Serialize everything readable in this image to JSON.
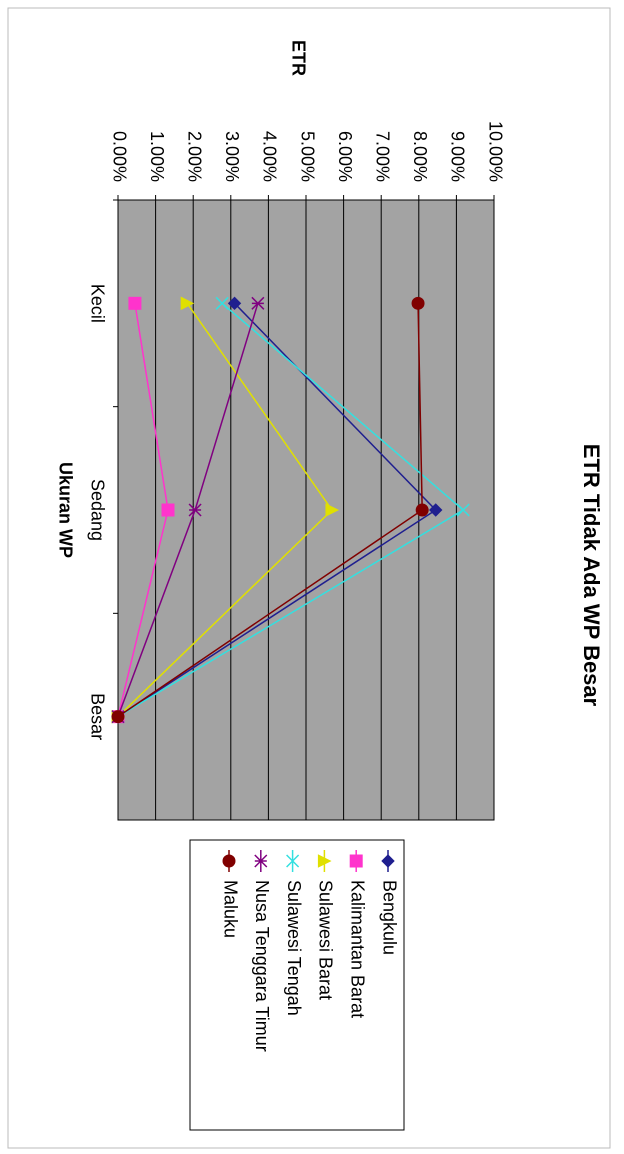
{
  "chart_data": {
    "type": "line",
    "title": "ETR Tidak Ada WP Besar",
    "y_label": "ETR",
    "x_label": "Ukuran WP",
    "categories": [
      "Kecil",
      "Sedang",
      "Besar"
    ],
    "series": [
      {
        "name": "Bengkulu",
        "color": "#1f1f8f",
        "values": [
          3.1,
          8.45,
          0
        ]
      },
      {
        "name": "Kalimantan Barat",
        "color": "#ff33cc",
        "values": [
          0.45,
          1.33,
          0
        ]
      },
      {
        "name": "Sulawesi Barat",
        "color": "#e0e000",
        "values": [
          1.84,
          5.69,
          0
        ]
      },
      {
        "name": "Sulawesi Tengah",
        "color": "#33e0e0",
        "values": [
          2.77,
          9.18,
          0
        ]
      },
      {
        "name": "Nusa Tenggara Timur",
        "color": "#800080",
        "values": [
          3.72,
          2.05,
          0
        ]
      },
      {
        "name": "Maluku",
        "color": "#800000",
        "values": [
          7.98,
          8.09,
          0
        ]
      }
    ],
    "ylim": [
      0,
      10
    ],
    "yticks": [
      {
        "value": 0,
        "label": "0.00%"
      },
      {
        "value": 1,
        "label": "1.00%"
      },
      {
        "value": 2,
        "label": "2.00%"
      },
      {
        "value": 3,
        "label": "3.00%"
      },
      {
        "value": 4,
        "label": "4.00%"
      },
      {
        "value": 5,
        "label": "5.00%"
      },
      {
        "value": 6,
        "label": "6.00%"
      },
      {
        "value": 7,
        "label": "7.00%"
      },
      {
        "value": 8,
        "label": "8.00%"
      },
      {
        "value": 9,
        "label": "9.00%"
      },
      {
        "value": 10,
        "label": "10.00%"
      }
    ],
    "grid": true
  }
}
